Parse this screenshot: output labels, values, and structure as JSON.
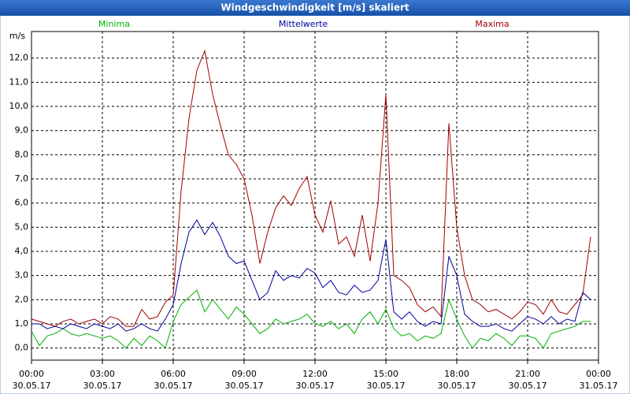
{
  "chart_data": {
    "type": "line",
    "title": "Windgeschwindigkeit [m/s] skaliert",
    "y_label": "m/s",
    "x": [
      0,
      20,
      40,
      60,
      80,
      100,
      120,
      140,
      160,
      180,
      200,
      220,
      240,
      260,
      280,
      300,
      320,
      340,
      360,
      380,
      400,
      420,
      440,
      460,
      480,
      500,
      520,
      540,
      560,
      580,
      600,
      620,
      640,
      660,
      680,
      700,
      720,
      740,
      760,
      780,
      800,
      820,
      840,
      860,
      880,
      900,
      920,
      940,
      960,
      980,
      1000,
      1020,
      1040,
      1060,
      1080,
      1100,
      1120,
      1140,
      1160,
      1180,
      1200,
      1220,
      1240,
      1260,
      1280,
      1300,
      1320,
      1340,
      1360,
      1380,
      1400,
      1420
    ],
    "series": [
      {
        "name": "Minima",
        "color": "#00b000",
        "values": [
          0.7,
          0.1,
          0.5,
          0.6,
          0.8,
          0.6,
          0.5,
          0.6,
          0.5,
          0.4,
          0.5,
          0.3,
          0.0,
          0.4,
          0.1,
          0.5,
          0.3,
          0.0,
          1.1,
          1.8,
          2.1,
          2.4,
          1.5,
          2.0,
          1.6,
          1.2,
          1.7,
          1.4,
          1.0,
          0.6,
          0.8,
          1.2,
          1.0,
          1.1,
          1.2,
          1.4,
          1.0,
          0.9,
          1.1,
          0.8,
          1.0,
          0.6,
          1.2,
          1.5,
          1.0,
          1.6,
          0.8,
          0.5,
          0.6,
          0.3,
          0.5,
          0.4,
          0.6,
          2.0,
          1.2,
          0.5,
          0.0,
          0.4,
          0.3,
          0.6,
          0.4,
          0.1,
          0.5,
          0.5,
          0.4,
          0.0,
          0.6,
          0.7,
          0.8,
          0.9,
          1.1,
          1.1
        ]
      },
      {
        "name": "Mittelwerte",
        "color": "#0000a0",
        "values": [
          1.0,
          1.0,
          0.8,
          0.9,
          0.8,
          1.0,
          0.9,
          0.8,
          1.0,
          0.9,
          0.8,
          1.0,
          0.7,
          0.8,
          1.0,
          0.8,
          0.7,
          1.2,
          1.8,
          3.5,
          4.8,
          5.3,
          4.7,
          5.2,
          4.6,
          3.8,
          3.5,
          3.6,
          2.8,
          2.0,
          2.3,
          3.2,
          2.8,
          3.0,
          2.9,
          3.3,
          3.1,
          2.5,
          2.8,
          2.3,
          2.2,
          2.6,
          2.3,
          2.4,
          2.8,
          4.5,
          1.5,
          1.2,
          1.5,
          1.1,
          0.9,
          1.1,
          1.0,
          3.8,
          3.0,
          1.4,
          1.1,
          0.9,
          0.9,
          1.0,
          0.8,
          0.7,
          1.0,
          1.3,
          1.2,
          1.0,
          1.3,
          1.0,
          1.2,
          1.1,
          2.3,
          2.0
        ]
      },
      {
        "name": "Maxima",
        "color": "#a00000",
        "values": [
          1.2,
          1.1,
          1.0,
          0.9,
          1.1,
          1.2,
          1.0,
          1.1,
          1.2,
          1.0,
          1.3,
          1.2,
          0.9,
          0.9,
          1.6,
          1.2,
          1.3,
          1.9,
          2.2,
          6.5,
          9.5,
          11.5,
          12.3,
          10.5,
          9.2,
          8.0,
          7.6,
          7.0,
          5.5,
          3.5,
          4.8,
          5.8,
          6.3,
          5.9,
          6.6,
          7.1,
          5.5,
          4.8,
          6.1,
          4.3,
          4.6,
          3.8,
          5.5,
          3.6,
          6.0,
          10.5,
          3.0,
          2.8,
          2.5,
          1.8,
          1.5,
          1.7,
          1.3,
          9.3,
          5.0,
          3.0,
          2.0,
          1.8,
          1.5,
          1.6,
          1.4,
          1.2,
          1.5,
          1.9,
          1.8,
          1.4,
          2.0,
          1.5,
          1.4,
          1.8,
          2.2,
          4.6
        ]
      }
    ],
    "xlim": [
      0,
      1440
    ],
    "xticks": [
      {
        "value": 0,
        "label": "00:00",
        "sublabel": "30.05.17"
      },
      {
        "value": 180,
        "label": "03:00",
        "sublabel": "30.05.17"
      },
      {
        "value": 360,
        "label": "06:00",
        "sublabel": "30.05.17"
      },
      {
        "value": 540,
        "label": "09:00",
        "sublabel": "30.05.17"
      },
      {
        "value": 720,
        "label": "12:00",
        "sublabel": "30.05.17"
      },
      {
        "value": 900,
        "label": "15:00",
        "sublabel": "30.05.17"
      },
      {
        "value": 1080,
        "label": "18:00",
        "sublabel": "30.05.17"
      },
      {
        "value": 1260,
        "label": "21:00",
        "sublabel": "30.05.17"
      },
      {
        "value": 1440,
        "label": "00:00",
        "sublabel": "31.05.17"
      }
    ],
    "ylim": [
      -0.5,
      13.1
    ],
    "yticks": [
      {
        "value": 0,
        "label": "0,0"
      },
      {
        "value": 1,
        "label": "1,0"
      },
      {
        "value": 2,
        "label": "2,0"
      },
      {
        "value": 3,
        "label": "3,0"
      },
      {
        "value": 4,
        "label": "4,0"
      },
      {
        "value": 5,
        "label": "5,0"
      },
      {
        "value": 6,
        "label": "6,0"
      },
      {
        "value": 7,
        "label": "7,0"
      },
      {
        "value": 8,
        "label": "8,0"
      },
      {
        "value": 9,
        "label": "9,0"
      },
      {
        "value": 10,
        "label": "10,0"
      },
      {
        "value": 11,
        "label": "11,0"
      },
      {
        "value": 12,
        "label": "12,0"
      }
    ],
    "grid": true
  }
}
